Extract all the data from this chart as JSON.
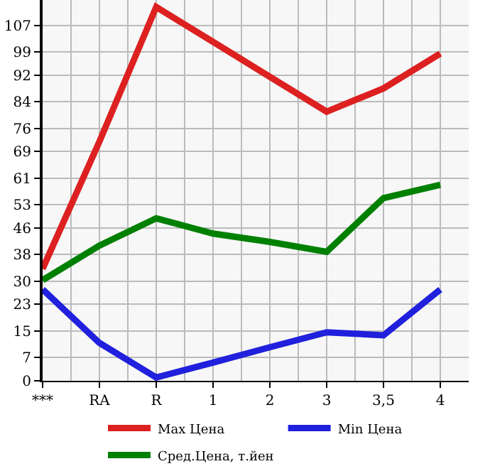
{
  "chart_data": {
    "type": "line",
    "categories": [
      "***",
      "RA",
      "R",
      "1",
      "2",
      "3",
      "3,5",
      "4"
    ],
    "series": [
      {
        "name": "Max Цена",
        "color": "#dd2020",
        "values": [
          33.7,
          72,
          112.5,
          102,
          91.5,
          81,
          88,
          98.5
        ]
      },
      {
        "name": "Min Цена",
        "color": "#2020dd",
        "values": [
          27.5,
          11.4,
          1.0,
          5.5,
          10.1,
          14.6,
          13.7,
          27.5
        ]
      },
      {
        "name": "Сред.Цена, т.йен",
        "color": "#008000",
        "values": [
          30.3,
          40.7,
          48.9,
          44.3,
          41.8,
          38.8,
          55,
          59
        ]
      }
    ],
    "ylim": [
      0,
      114.6
    ],
    "yticks": [
      0,
      7,
      15,
      23,
      30,
      38,
      46,
      53,
      61,
      69,
      76,
      84,
      92,
      99,
      107
    ],
    "grid": true,
    "legend": "bottom",
    "marker": "none",
    "line_style": "solid"
  }
}
